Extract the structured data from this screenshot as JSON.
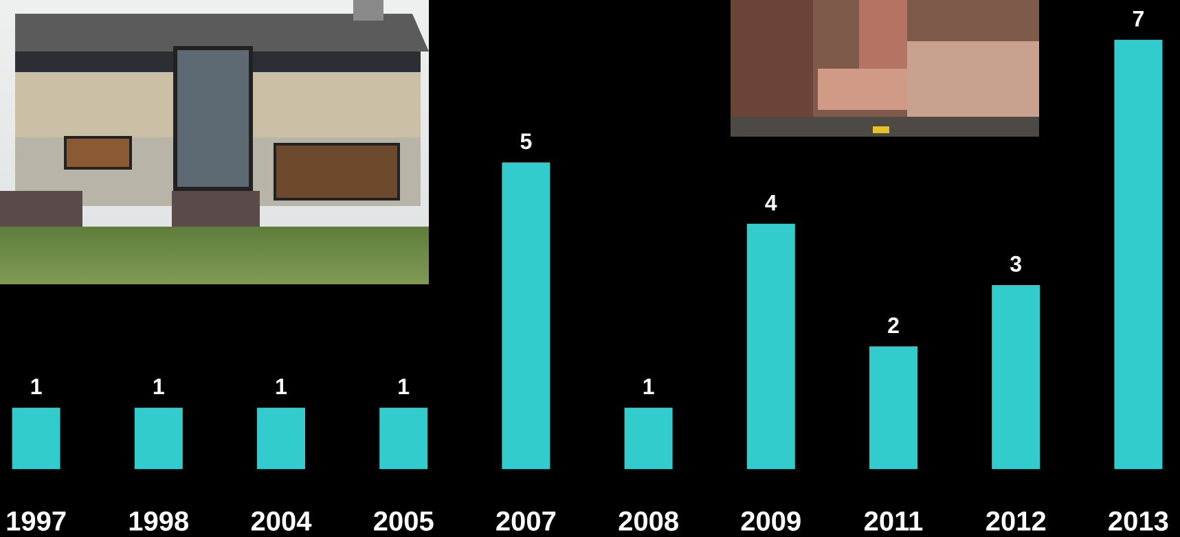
{
  "chart_data": {
    "type": "bar",
    "categories": [
      "1997",
      "1998",
      "2004",
      "2005",
      "2007",
      "2008",
      "2009",
      "2011",
      "2012",
      "2013"
    ],
    "values": [
      1,
      1,
      1,
      1,
      5,
      1,
      4,
      2,
      3,
      7
    ],
    "color": "#33cccc"
  }
}
